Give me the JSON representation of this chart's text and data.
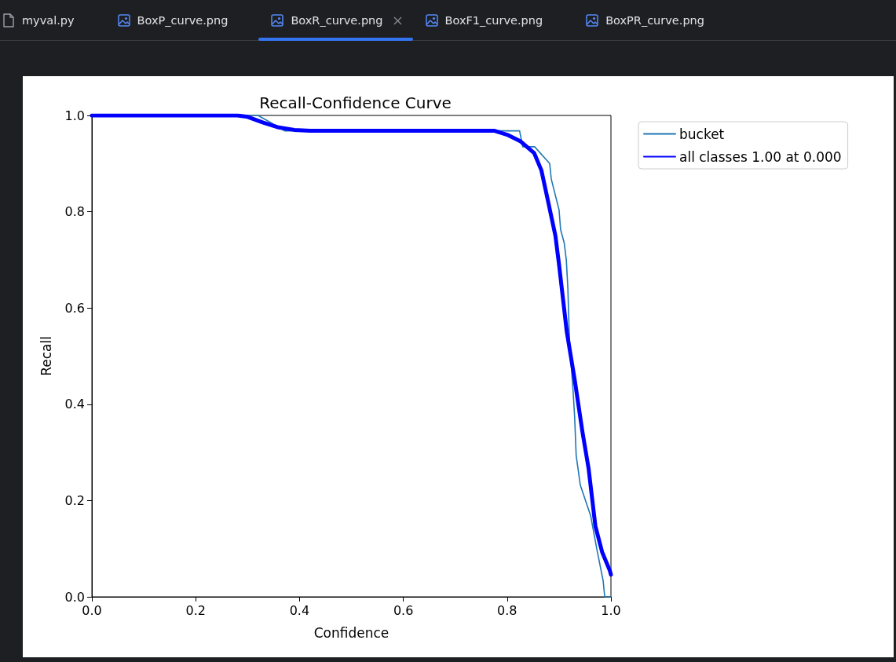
{
  "chart_data": {
    "type": "line",
    "title": "Recall-Confidence Curve",
    "xlabel": "Confidence",
    "ylabel": "Recall",
    "xlim": [
      0,
      1
    ],
    "ylim": [
      0,
      1
    ],
    "xticks": [
      {
        "value": 0,
        "label": "0.0"
      },
      0.2,
      0.4,
      0.6,
      0.8,
      {
        "value": 1,
        "label": "1.0"
      }
    ],
    "yticks": [
      {
        "value": 0,
        "label": "0.0"
      },
      0.2,
      0.4,
      0.6,
      0.8,
      {
        "value": 1,
        "label": "1.0"
      }
    ],
    "legend": "top right",
    "marker": "none",
    "line_style": "solid",
    "annotations": [
      "myval.py",
      "BoxP_curve.png",
      "BoxR_curve.png",
      "BoxF1_curve.png",
      "BoxPR_curve.png"
    ],
    "series": [
      {
        "name": "bucket",
        "color": "#1f77b4",
        "x": [
          0,
          0.32,
          0.345,
          0.371,
          0.824,
          0.83,
          0.853,
          0.882,
          0.885,
          0.9,
          0.903,
          0.91,
          0.914,
          0.917,
          0.92,
          0.927,
          0.93,
          0.933,
          0.941,
          0.961,
          0.973,
          0.985,
          0.988,
          1
        ],
        "values": [
          1,
          1,
          0.985,
          0.968,
          0.968,
          0.935,
          0.935,
          0.9,
          0.868,
          0.804,
          0.763,
          0.735,
          0.7,
          0.641,
          0.533,
          0.429,
          0.375,
          0.294,
          0.232,
          0.168,
          0.098,
          0.033,
          0,
          0
        ]
      },
      {
        "name": "all classes 1.00 at 0.000",
        "color": "#0000ff",
        "x": [
          0,
          0.28,
          0.3,
          0.33,
          0.36,
          0.39,
          0.42,
          0.776,
          0.8,
          0.826,
          0.852,
          0.866,
          0.879,
          0.893,
          0.9,
          0.915,
          0.93,
          0.945,
          0.957,
          0.97,
          0.983,
          0.998,
          1
        ],
        "values": [
          1,
          1,
          0.997,
          0.985,
          0.975,
          0.97,
          0.968,
          0.968,
          0.96,
          0.946,
          0.922,
          0.886,
          0.821,
          0.75,
          0.69,
          0.55,
          0.452,
          0.343,
          0.266,
          0.147,
          0.093,
          0.054,
          0.046
        ]
      }
    ]
  }
}
